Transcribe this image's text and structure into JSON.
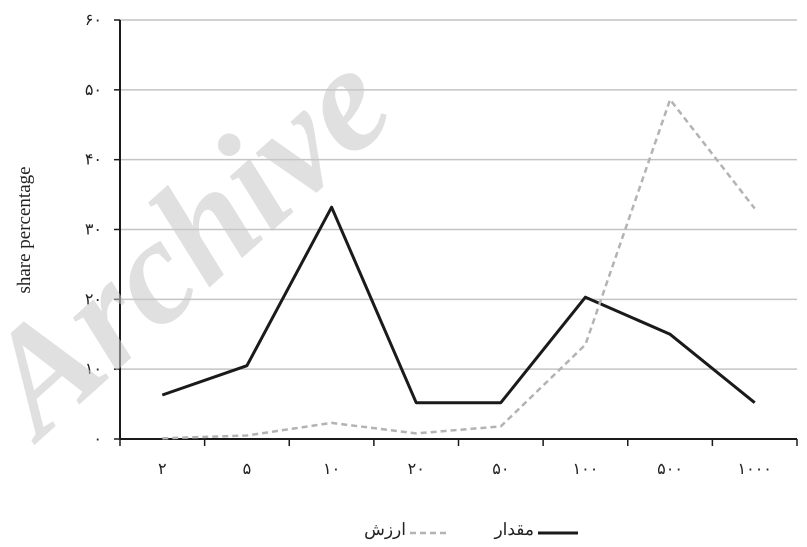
{
  "chart_data": {
    "type": "line",
    "categories": [
      "٢",
      "۵",
      "١٠",
      "٢٠",
      "۵٠",
      "١٠٠",
      "۵٠٠",
      "١٠٠٠"
    ],
    "series": [
      {
        "name": "مقدار",
        "values": [
          6.3,
          10.5,
          33.2,
          5.2,
          5.2,
          20.3,
          15.0,
          5.2
        ],
        "color": "#1a1a1a",
        "dash": "solid"
      },
      {
        "name": "ارزش",
        "values": [
          0.1,
          0.5,
          2.3,
          0.8,
          1.8,
          13.5,
          48.6,
          33.0
        ],
        "color": "#b3b3b3",
        "dash": "dashed"
      }
    ],
    "y_ticks": [
      "٠",
      "١٠",
      "٢٠",
      "٣٠",
      "۴٠",
      "۵٠",
      "۶٠"
    ],
    "ylabel": "share percentage",
    "xlabel": "",
    "ylim": [
      0,
      60
    ],
    "grid": true,
    "legend_position": "bottom-center"
  },
  "watermark": {
    "text": "Archive"
  }
}
